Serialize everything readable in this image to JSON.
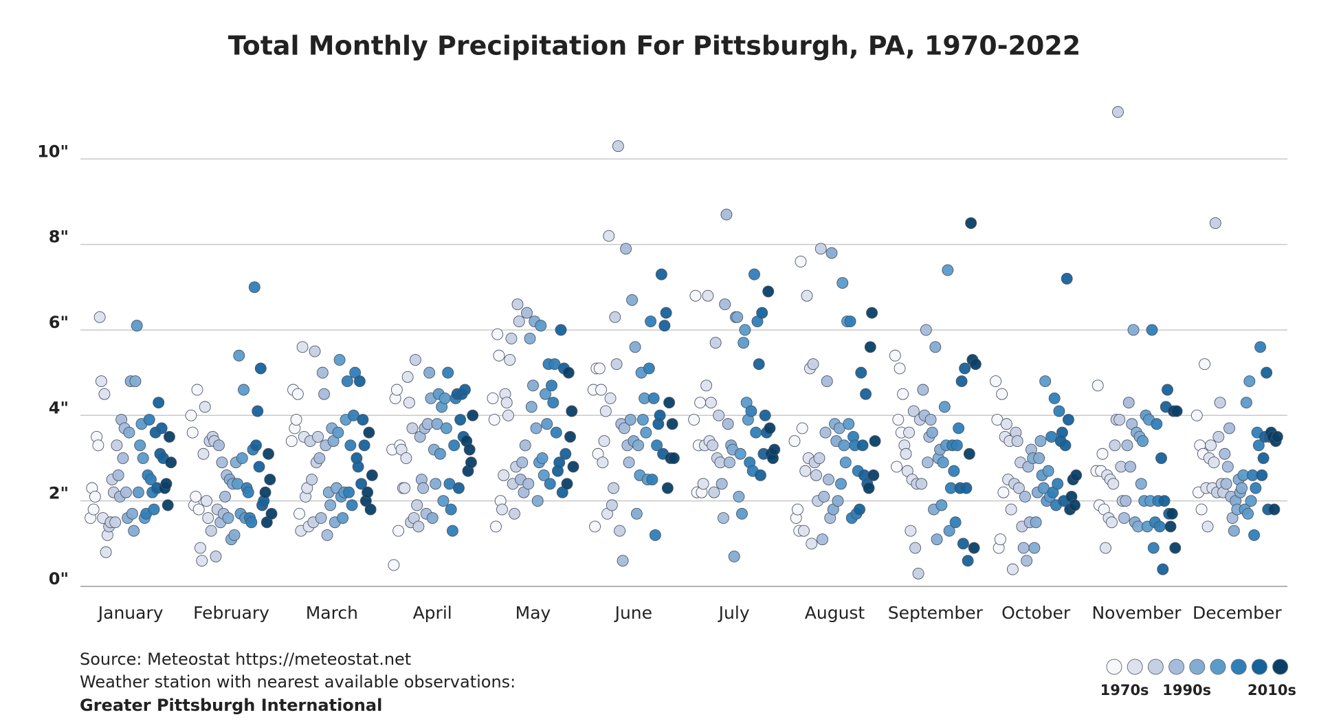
{
  "chart_data": {
    "type": "strip",
    "title": "Total Monthly Precipitation For Pittsburgh, PA, 1970-2022",
    "categories": [
      "January",
      "February",
      "March",
      "April",
      "May",
      "June",
      "July",
      "August",
      "September",
      "October",
      "November",
      "December"
    ],
    "values": [
      [
        1.6,
        2.3,
        1.8,
        2.1,
        3.5,
        3.3,
        6.3,
        4.8,
        1.6,
        4.5,
        0.8,
        1.2,
        1.4,
        1.5,
        2.5,
        2.2,
        1.5,
        3.3,
        2.6,
        2.1,
        3.9,
        3.0,
        3.7,
        2.2,
        1.6,
        3.6,
        4.8,
        1.7,
        1.3,
        4.8,
        6.1,
        2.2,
        3.3,
        3.8,
        3.0,
        1.6,
        1.7,
        2.6,
        3.9,
        2.5,
        2.2,
        1.8,
        3.6,
        2.3,
        4.3,
        3.1,
        3.7,
        3.0,
        2.3,
        2.4,
        1.9,
        3.5,
        2.9
      ],
      [
        4.0,
        3.6,
        1.9,
        2.1,
        4.6,
        1.8,
        0.9,
        0.6,
        3.1,
        4.2,
        2.0,
        1.6,
        3.4,
        1.3,
        3.5,
        3.4,
        0.7,
        1.8,
        3.3,
        1.5,
        2.9,
        1.7,
        2.1,
        2.6,
        1.6,
        2.5,
        1.1,
        2.4,
        1.2,
        2.9,
        2.4,
        5.4,
        1.7,
        3.0,
        4.6,
        1.6,
        2.3,
        2.2,
        1.6,
        1.5,
        3.2,
        7.0,
        3.3,
        4.1,
        2.8,
        5.1,
        1.9,
        2.0,
        2.2,
        1.5,
        3.1,
        2.5,
        1.7
      ],
      [
        3.4,
        4.6,
        3.7,
        3.9,
        4.5,
        1.7,
        1.3,
        5.6,
        3.5,
        2.1,
        2.3,
        1.4,
        3.4,
        2.5,
        1.5,
        5.5,
        2.9,
        3.5,
        3.0,
        1.6,
        5.0,
        4.5,
        3.3,
        1.2,
        2.2,
        1.9,
        3.7,
        3.4,
        1.5,
        2.3,
        3.6,
        5.3,
        2.1,
        1.6,
        2.2,
        3.9,
        4.8,
        2.2,
        3.3,
        1.9,
        4.0,
        5.0,
        3.0,
        2.8,
        4.8,
        2.4,
        3.9,
        3.3,
        2.0,
        2.2,
        3.6,
        1.8,
        2.6
      ],
      [
        3.2,
        0.5,
        4.4,
        4.6,
        1.3,
        3.3,
        3.2,
        2.3,
        2.3,
        3.0,
        4.9,
        4.3,
        1.5,
        3.7,
        1.6,
        5.3,
        1.9,
        1.4,
        3.5,
        2.5,
        2.3,
        3.7,
        1.7,
        3.8,
        5.0,
        4.4,
        1.6,
        3.2,
        2.4,
        3.8,
        4.5,
        3.1,
        4.2,
        2.0,
        4.4,
        3.7,
        5.0,
        2.4,
        1.8,
        1.3,
        3.3,
        4.4,
        4.5,
        2.3,
        3.9,
        4.5,
        3.5,
        4.6,
        3.4,
        2.7,
        3.2,
        2.9,
        4.0
      ],
      [
        4.4,
        3.9,
        1.4,
        5.9,
        5.4,
        2.0,
        1.8,
        2.6,
        4.5,
        4.3,
        4.0,
        5.3,
        5.8,
        2.4,
        1.7,
        2.8,
        6.6,
        6.2,
        2.5,
        2.9,
        2.2,
        3.3,
        6.4,
        2.4,
        5.8,
        4.2,
        4.7,
        6.2,
        3.7,
        2.0,
        2.9,
        6.1,
        3.0,
        2.6,
        4.5,
        3.8,
        5.2,
        2.4,
        4.7,
        4.3,
        5.2,
        3.6,
        2.7,
        2.9,
        6.0,
        2.2,
        5.1,
        3.1,
        2.4,
        5.0,
        3.5,
        4.1,
        2.8
      ],
      [
        4.6,
        1.4,
        5.1,
        3.1,
        5.1,
        4.6,
        2.9,
        3.4,
        4.1,
        1.7,
        8.2,
        4.4,
        1.9,
        2.3,
        6.3,
        5.2,
        10.3,
        1.3,
        3.8,
        0.6,
        3.7,
        7.9,
        3.3,
        2.9,
        3.9,
        6.7,
        3.4,
        5.6,
        1.7,
        3.3,
        2.6,
        5.0,
        3.9,
        4.4,
        3.6,
        2.5,
        5.1,
        6.2,
        2.5,
        4.4,
        1.2,
        3.3,
        3.8,
        4.0,
        7.3,
        3.1,
        6.1,
        6.4,
        2.3,
        4.3,
        3.0,
        3.8,
        3.0
      ],
      [
        3.9,
        6.8,
        2.2,
        3.3,
        4.3,
        2.2,
        2.4,
        3.3,
        4.7,
        6.8,
        3.4,
        4.3,
        3.3,
        2.2,
        5.7,
        3.0,
        4.0,
        2.9,
        2.4,
        1.6,
        6.6,
        8.7,
        3.8,
        2.9,
        3.3,
        3.2,
        0.7,
        6.3,
        6.3,
        2.1,
        3.1,
        1.7,
        5.7,
        6.0,
        4.3,
        3.9,
        2.9,
        4.1,
        2.7,
        7.3,
        3.6,
        6.2,
        5.2,
        2.6,
        6.4,
        3.1,
        4.0,
        3.6,
        6.9,
        3.7,
        3.1,
        3.0,
        3.2
      ],
      [
        3.4,
        1.6,
        1.8,
        1.3,
        7.6,
        3.7,
        1.3,
        2.7,
        6.8,
        3.0,
        5.1,
        1.0,
        5.2,
        2.9,
        2.6,
        2.0,
        3.0,
        7.9,
        1.1,
        2.1,
        3.6,
        4.8,
        2.5,
        1.6,
        7.8,
        1.8,
        3.8,
        3.4,
        2.0,
        3.7,
        2.4,
        7.1,
        3.3,
        2.9,
        6.2,
        3.8,
        6.2,
        1.6,
        3.5,
        3.3,
        1.7,
        2.7,
        1.8,
        5.0,
        3.3,
        2.6,
        4.5,
        2.4,
        2.3,
        5.6,
        6.4,
        2.6,
        3.4
      ],
      [
        5.4,
        2.8,
        3.9,
        5.1,
        3.6,
        4.5,
        3.3,
        3.1,
        2.7,
        3.6,
        1.3,
        2.5,
        4.1,
        0.9,
        2.4,
        0.3,
        3.9,
        2.4,
        4.6,
        4.0,
        6.0,
        2.9,
        3.5,
        3.9,
        3.6,
        1.8,
        5.6,
        1.1,
        3.0,
        3.2,
        1.9,
        2.9,
        4.2,
        3.3,
        7.4,
        1.3,
        2.3,
        3.3,
        2.7,
        1.5,
        3.3,
        3.7,
        2.3,
        4.8,
        1.0,
        5.1,
        2.3,
        0.6,
        3.1,
        8.5,
        5.3,
        0.9,
        5.2
      ],
      [
        4.8,
        3.9,
        0.9,
        1.1,
        4.5,
        2.2,
        3.5,
        3.8,
        2.5,
        3.4,
        1.8,
        0.4,
        2.4,
        3.6,
        3.4,
        2.3,
        2.9,
        1.4,
        0.9,
        2.1,
        0.6,
        2.8,
        1.5,
        3.2,
        3.0,
        0.9,
        1.5,
        2.2,
        3.0,
        3.4,
        2.6,
        2.3,
        4.8,
        2.0,
        2.7,
        2.1,
        3.5,
        2.2,
        4.4,
        1.9,
        2.4,
        4.1,
        3.4,
        3.6,
        2.0,
        3.3,
        7.2,
        3.9,
        1.8,
        2.1,
        2.5,
        1.9,
        2.6
      ],
      [
        2.7,
        4.7,
        1.9,
        2.7,
        3.1,
        1.8,
        0.9,
        2.6,
        1.6,
        2.5,
        1.5,
        2.4,
        3.3,
        3.9,
        11.1,
        3.9,
        2.8,
        2.0,
        1.6,
        2.0,
        3.3,
        4.3,
        2.8,
        3.8,
        6.0,
        1.5,
        3.6,
        1.4,
        3.5,
        2.4,
        3.4,
        2.0,
        4.0,
        1.4,
        3.9,
        2.0,
        6.0,
        0.9,
        1.5,
        3.8,
        2.0,
        1.4,
        3.0,
        0.4,
        2.0,
        4.2,
        4.6,
        1.7,
        1.4,
        1.7,
        4.1,
        0.9,
        4.1
      ],
      [
        4.0,
        2.2,
        3.3,
        1.8,
        3.1,
        5.2,
        2.3,
        1.4,
        3.0,
        3.3,
        2.3,
        2.9,
        8.5,
        2.2,
        3.5,
        4.3,
        2.4,
        2.2,
        3.1,
        2.4,
        2.8,
        3.7,
        2.1,
        1.6,
        1.3,
        2.0,
        1.8,
        2.5,
        2.2,
        2.3,
        2.6,
        1.8,
        4.3,
        1.7,
        4.8,
        2.0,
        2.6,
        1.2,
        2.3,
        3.6,
        3.3,
        5.6,
        2.6,
        3.0,
        3.5,
        5.0,
        1.8,
        3.5,
        3.6,
        3.5,
        1.8,
        3.4,
        3.5
      ]
    ],
    "ylim": [
      0,
      11.5
    ],
    "yticks": [
      {
        "value": 0,
        "label": "0\""
      },
      {
        "value": 2,
        "label": "2\""
      },
      {
        "value": 4,
        "label": "4\""
      },
      {
        "value": 6,
        "label": "6\""
      },
      {
        "value": 8,
        "label": "8\""
      },
      {
        "value": 10,
        "label": "10\""
      }
    ],
    "grid": true,
    "legend": {
      "colors": [
        "#f6f7fb",
        "#dde2ee",
        "#c6d0e4",
        "#a6bcdb",
        "#83acd2",
        "#5b9bca",
        "#2f7fb8",
        "#16629a",
        "#0a3f66"
      ],
      "labels": [
        "1970s",
        "1990s",
        "2010s"
      ]
    },
    "source": [
      "Source: Meteostat https://meteostat.net",
      "Weather station with nearest available observations:",
      "Greater Pittsburgh International"
    ]
  }
}
